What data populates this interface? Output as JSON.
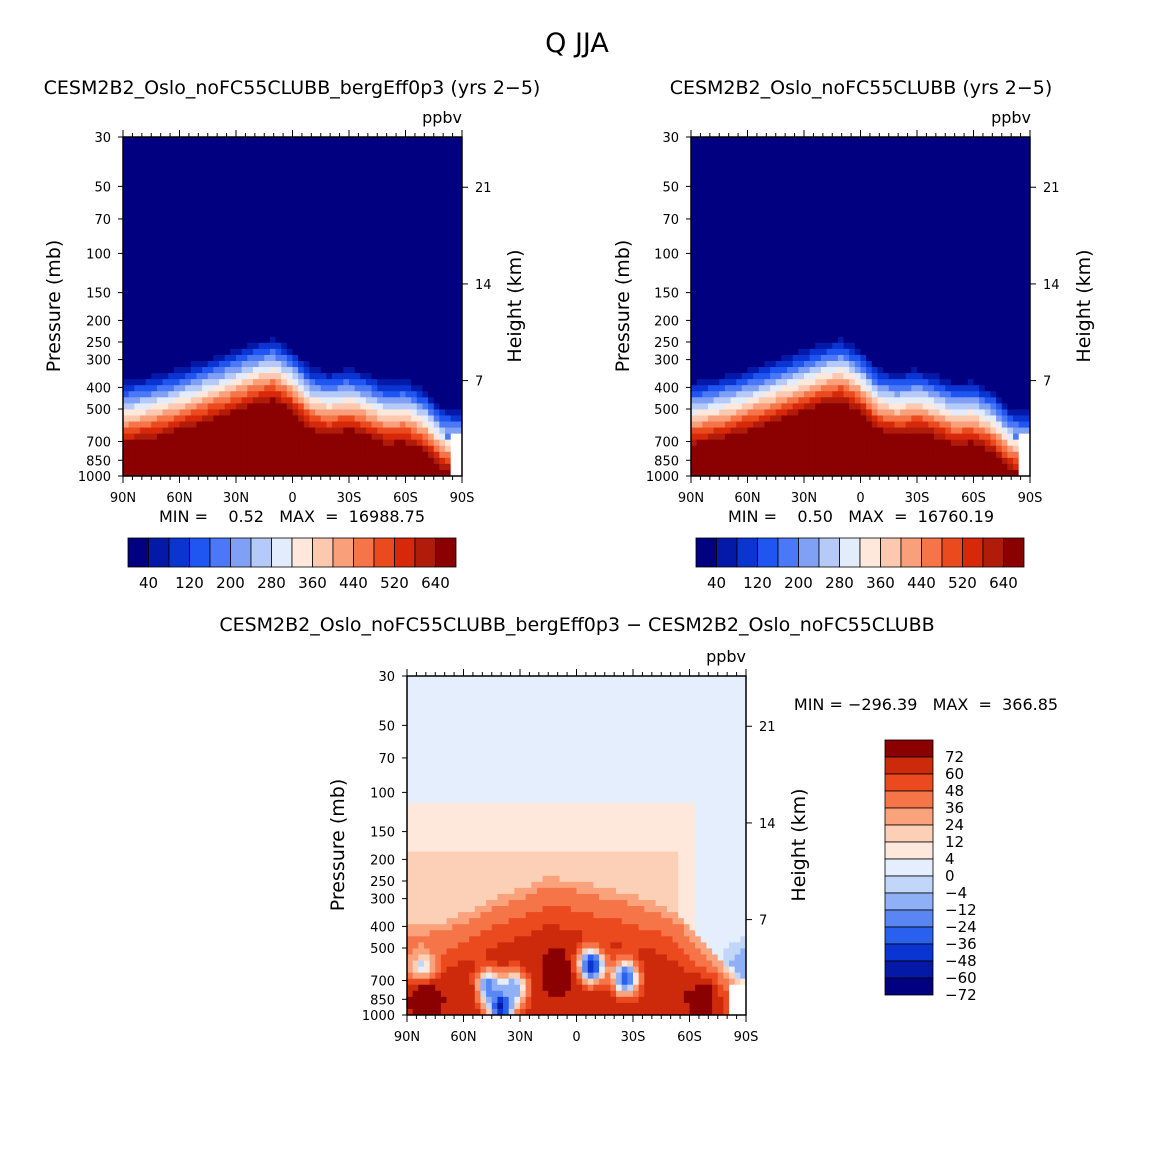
{
  "figure": {
    "title": "Q  JJA"
  },
  "colors": {
    "abs_levels": [
      "#000080",
      "#0419a8",
      "#0b35d2",
      "#1f55f0",
      "#4a78f6",
      "#7fa0f4",
      "#b5caf8",
      "#e3ecfb",
      "#fde8db",
      "#fcc9b0",
      "#f9a07a",
      "#f57549",
      "#ea4a1e",
      "#d8280a",
      "#b11b0a",
      "#8b0000"
    ],
    "diff_levels": [
      "#000080",
      "#0419a8",
      "#0b35d2",
      "#2a60ee",
      "#5a86f4",
      "#8fb0f6",
      "#c2d6fa",
      "#e4eefc",
      "#fde8db",
      "#fcd0b6",
      "#f9a27c",
      "#f57549",
      "#ea4a1e",
      "#cc2a0b",
      "#8b0000"
    ]
  },
  "chart_data": [
    {
      "type": "heatmap",
      "title": "CESM2B2_Oslo_noFC55CLUBB_bergEff0p3 (yrs 2−5)",
      "units": "ppbv",
      "ylabel": "Pressure (mb)",
      "y2label": "Height (km)",
      "x_ticks": [
        "90N",
        "60N",
        "30N",
        "0",
        "30S",
        "60S",
        "90S"
      ],
      "x_range": [
        90,
        -90
      ],
      "y_ticks": [
        30,
        50,
        70,
        100,
        150,
        200,
        250,
        300,
        400,
        500,
        700,
        850,
        1000
      ],
      "y_range_mb": [
        30,
        1000
      ],
      "height_ticks_km": [
        7,
        14,
        21
      ],
      "stats_text": "MIN =    0.52   MAX  =  16988.75",
      "min": 0.52,
      "max": 16988.75,
      "colorbar": {
        "levels": [
          40,
          80,
          120,
          160,
          200,
          240,
          280,
          320,
          360,
          400,
          440,
          480,
          520,
          560,
          600,
          640
        ],
        "labels": [
          "40",
          "120",
          "200",
          "280",
          "360",
          "440",
          "520",
          "640"
        ]
      },
      "ridge_profile_mb": {
        "lat": [
          90,
          75,
          60,
          45,
          30,
          20,
          10,
          0,
          -10,
          -20,
          -30,
          -40,
          -50,
          -60,
          -70,
          -75,
          -80,
          -85,
          -90
        ],
        "p": [
          520,
          490,
          450,
          410,
          370,
          345,
          330,
          370,
          450,
          470,
          450,
          480,
          520,
          510,
          560,
          620,
          680,
          700,
          700
        ]
      }
    },
    {
      "type": "heatmap",
      "title": "CESM2B2_Oslo_noFC55CLUBB (yrs 2−5)",
      "units": "ppbv",
      "ylabel": "Pressure (mb)",
      "y2label": "Height (km)",
      "x_ticks": [
        "90N",
        "60N",
        "30N",
        "0",
        "30S",
        "60S",
        "90S"
      ],
      "x_range": [
        90,
        -90
      ],
      "y_ticks": [
        30,
        50,
        70,
        100,
        150,
        200,
        250,
        300,
        400,
        500,
        700,
        850,
        1000
      ],
      "y_range_mb": [
        30,
        1000
      ],
      "height_ticks_km": [
        7,
        14,
        21
      ],
      "stats_text": "MIN =    0.50   MAX  =  16760.19",
      "min": 0.5,
      "max": 16760.19,
      "colorbar": {
        "levels": [
          40,
          80,
          120,
          160,
          200,
          240,
          280,
          320,
          360,
          400,
          440,
          480,
          520,
          560,
          600,
          640
        ],
        "labels": [
          "40",
          "120",
          "200",
          "280",
          "360",
          "440",
          "520",
          "640"
        ]
      },
      "ridge_profile_mb": {
        "lat": [
          90,
          75,
          60,
          45,
          30,
          20,
          10,
          0,
          -10,
          -20,
          -30,
          -40,
          -50,
          -60,
          -70,
          -75,
          -80,
          -85,
          -90
        ],
        "p": [
          520,
          490,
          450,
          410,
          370,
          345,
          330,
          370,
          450,
          470,
          450,
          480,
          520,
          510,
          560,
          620,
          680,
          700,
          700
        ]
      }
    },
    {
      "type": "heatmap",
      "title": "CESM2B2_Oslo_noFC55CLUBB_bergEff0p3 − CESM2B2_Oslo_noFC55CLUBB",
      "units": "ppbv",
      "ylabel": "Pressure (mb)",
      "y2label": "Height (km)",
      "x_ticks": [
        "90N",
        "60N",
        "30N",
        "0",
        "30S",
        "60S",
        "90S"
      ],
      "x_range": [
        90,
        -90
      ],
      "y_ticks": [
        30,
        50,
        70,
        100,
        150,
        200,
        250,
        300,
        400,
        500,
        700,
        850,
        1000
      ],
      "y_range_mb": [
        30,
        1000
      ],
      "height_ticks_km": [
        7,
        14,
        21
      ],
      "stats_text": "MIN = −296.39   MAX  =  366.85",
      "min": -296.39,
      "max": 366.85,
      "colorbar": {
        "levels": [
          -72,
          -60,
          -48,
          -36,
          -24,
          -12,
          -4,
          0,
          4,
          12,
          24,
          36,
          48,
          60,
          72
        ],
        "labels": [
          "72",
          "60",
          "48",
          "36",
          "24",
          "12",
          "4",
          "0",
          "−4",
          "−12",
          "−24",
          "−36",
          "−48",
          "−60",
          "−72"
        ]
      },
      "features": {
        "warm_band_top_mb": {
          "lat": [
            90,
            70,
            60,
            45,
            30,
            15,
            0,
            -15,
            -30,
            -45,
            -55,
            -65,
            -75,
            -90
          ],
          "p": [
            400,
            380,
            350,
            300,
            270,
            240,
            250,
            270,
            290,
            320,
            360,
            450,
            550,
            700
          ]
        },
        "pale_orange_region": {
          "lat_from": 90,
          "lat_to": -60,
          "top_mb": 110
        },
        "blue_cells": [
          {
            "lat": 82,
            "p": 620,
            "value": -12
          },
          {
            "lat": 40,
            "p": 900,
            "value": -72
          },
          {
            "lat": 47,
            "p": 750,
            "value": -36
          },
          {
            "lat": 33,
            "p": 760,
            "value": -24
          },
          {
            "lat": -8,
            "p": 600,
            "value": -60
          },
          {
            "lat": -26,
            "p": 680,
            "value": -48
          },
          {
            "lat": -88,
            "p": 600,
            "value": -24
          }
        ],
        "red_cells": [
          {
            "lat": 10,
            "p": 650,
            "value": 72
          },
          {
            "lat": -68,
            "p": 820,
            "value": 72
          },
          {
            "lat": 60,
            "p": 800,
            "value": 60
          },
          {
            "lat": 80,
            "p": 820,
            "value": 72
          }
        ]
      }
    }
  ]
}
